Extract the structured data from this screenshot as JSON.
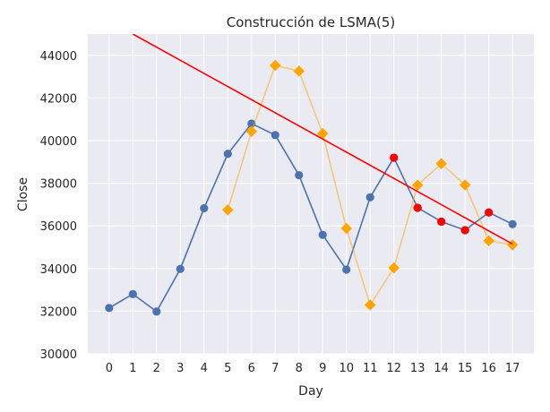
{
  "chart_data": {
    "type": "line",
    "title": "Construcción de LSMA(5)",
    "xlabel": "Day",
    "ylabel": "Close",
    "x_ticks": [
      "0",
      "1",
      "2",
      "3",
      "4",
      "5",
      "6",
      "7",
      "8",
      "9",
      "10",
      "11",
      "12",
      "13",
      "14",
      "15",
      "16",
      "17"
    ],
    "y_ticks": [
      "30000",
      "32000",
      "34000",
      "36000",
      "38000",
      "40000",
      "42000",
      "44000"
    ],
    "xlim": [
      -0.9,
      17.9
    ],
    "ylim": [
      30000,
      45000
    ],
    "grid": true,
    "background": "#eaeaf2",
    "series": [
      {
        "kind": "line-markers",
        "color": "#4c72b0",
        "marker": "circle",
        "x": [
          0,
          1,
          2,
          3,
          4,
          5,
          6,
          7,
          8,
          9,
          10,
          11,
          12,
          13,
          14,
          15,
          16,
          17
        ],
        "values": [
          32150,
          32800,
          31980,
          33980,
          36830,
          39380,
          40800,
          40260,
          38380,
          35580,
          33950,
          37340,
          39200,
          36850,
          36200,
          35800,
          36630,
          36080
        ]
      },
      {
        "kind": "line-markers",
        "color": "#ffa500",
        "line_opacity": 0.5,
        "marker": "diamond",
        "x": [
          5,
          6,
          7,
          8,
          9,
          10,
          11,
          12,
          13,
          14,
          15,
          16,
          17
        ],
        "values": [
          36750,
          40430,
          43530,
          43260,
          40330,
          35880,
          32290,
          34030,
          37910,
          38920,
          37920,
          35300,
          35110
        ]
      },
      {
        "kind": "markers",
        "color": "#ff0000",
        "marker": "circle",
        "x": [
          12,
          13,
          14,
          15,
          16
        ],
        "values": [
          39200,
          36850,
          36200,
          35800,
          36630
        ]
      },
      {
        "kind": "line",
        "color": "#ff0000",
        "x": [
          1,
          17
        ],
        "values": [
          45000,
          35150
        ]
      }
    ]
  }
}
